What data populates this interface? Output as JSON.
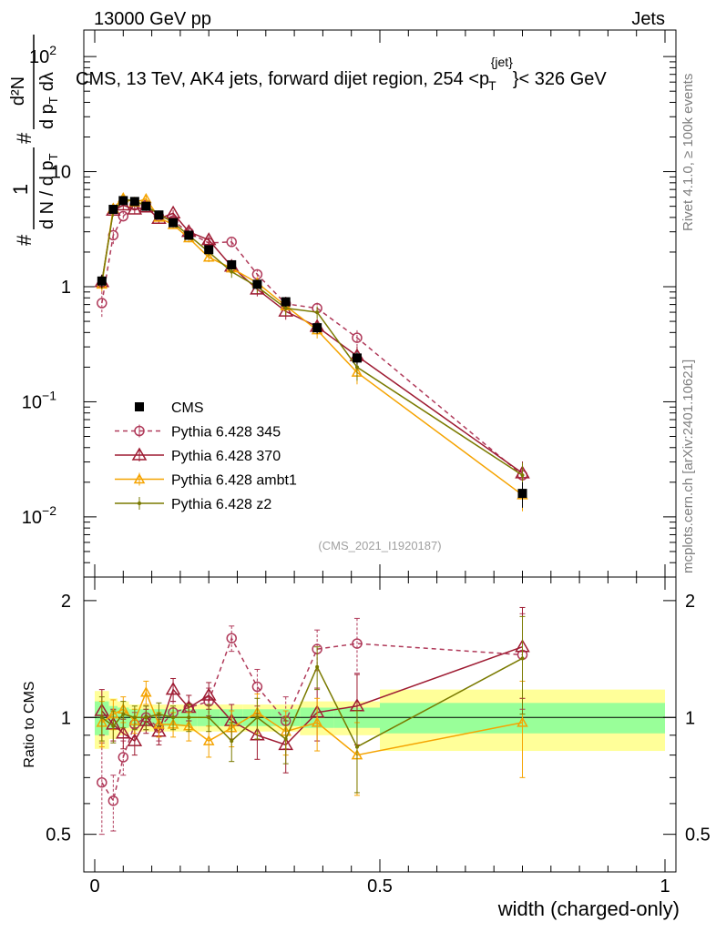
{
  "header": {
    "left": "13000 GeV pp",
    "right": "Jets"
  },
  "side_labels": {
    "rivet": "Rivet 4.1.0, ≥ 100k events",
    "mcplots": "mcplots.cern.ch [arXiv:2401.10621]"
  },
  "ylabel_main": {
    "frac1": "1",
    "frac1_den": "d N / d p",
    "frac2_num": "d²N",
    "frac2_den": "d p",
    "frac2_den2": "dλ",
    "sub_T": "T",
    "hash": "#"
  },
  "plot_title": {
    "prefix": "CMS, 13 TeV, AK4 jets, forward dijet region, 254 <p",
    "sub": "T",
    "sup": "{jet}",
    "suffix": "}< 326 GeV"
  },
  "analysis_id": "(CMS_2021_I1920187)",
  "legend": [
    {
      "label": "CMS"
    },
    {
      "label": "Pythia 6.428 345"
    },
    {
      "label": "Pythia 6.428 370"
    },
    {
      "label": "Pythia 6.428 ambt1"
    },
    {
      "label": "Pythia 6.428 z2"
    }
  ],
  "chart_data": {
    "type": "line",
    "xlabel": "width (charged-only)",
    "xlim": [
      0,
      1
    ],
    "x_ticks": [
      "0",
      "0.5",
      "1"
    ],
    "main": {
      "yscale": "log",
      "ylim": [
        0.003,
        170
      ],
      "y_ticks": [
        {
          "value": 0.01,
          "base": "10",
          "exp": "−2"
        },
        {
          "value": 0.1,
          "base": "10",
          "exp": "−1"
        },
        {
          "value": 1,
          "base": "1",
          "exp": ""
        },
        {
          "value": 10,
          "base": "10",
          "exp": ""
        },
        {
          "value": 100,
          "base": "10",
          "exp": "2"
        }
      ]
    },
    "ratio": {
      "ylabel": "Ratio to CMS",
      "yscale": "log",
      "ylim": [
        0.4,
        2.3
      ],
      "y_ticks": [
        {
          "value": 0.5,
          "label": "0.5"
        },
        {
          "value": 1,
          "label": "1"
        },
        {
          "value": 2,
          "label": "2"
        }
      ]
    },
    "bins": [
      [
        0.0,
        0.025
      ],
      [
        0.025,
        0.04
      ],
      [
        0.04,
        0.06
      ],
      [
        0.06,
        0.08
      ],
      [
        0.08,
        0.1
      ],
      [
        0.1,
        0.125
      ],
      [
        0.125,
        0.15
      ],
      [
        0.15,
        0.18
      ],
      [
        0.18,
        0.22
      ],
      [
        0.22,
        0.26
      ],
      [
        0.26,
        0.31
      ],
      [
        0.31,
        0.36
      ],
      [
        0.36,
        0.42
      ],
      [
        0.42,
        0.5
      ],
      [
        0.5,
        1.0
      ]
    ],
    "x": [
      0.0125,
      0.0325,
      0.05,
      0.07,
      0.09,
      0.1125,
      0.1375,
      0.165,
      0.2,
      0.24,
      0.285,
      0.335,
      0.39,
      0.46,
      0.75
    ],
    "data": {
      "name": "CMS",
      "values": [
        1.12,
        4.7,
        5.6,
        5.5,
        5.0,
        4.2,
        3.6,
        2.8,
        2.1,
        1.55,
        1.05,
        0.74,
        0.44,
        0.24,
        0.016
      ],
      "errors": [
        0.15,
        0.4,
        0.4,
        0.4,
        0.35,
        0.3,
        0.28,
        0.22,
        0.16,
        0.12,
        0.09,
        0.07,
        0.05,
        0.03,
        0.004
      ],
      "band_inner": [
        0.1,
        0.07,
        0.06,
        0.05,
        0.05,
        0.05,
        0.05,
        0.05,
        0.05,
        0.05,
        0.05,
        0.05,
        0.06,
        0.06,
        0.09
      ],
      "band_outer": [
        0.17,
        0.12,
        0.1,
        0.08,
        0.08,
        0.08,
        0.08,
        0.08,
        0.08,
        0.08,
        0.08,
        0.08,
        0.1,
        0.1,
        0.18
      ]
    },
    "series": [
      {
        "name": "Pythia 6.428 345",
        "color": "#b03a5a",
        "style": "dashed",
        "marker": "circle",
        "values": [
          0.72,
          2.8,
          4.1,
          5.1,
          5.1,
          4.1,
          3.75,
          2.95,
          2.4,
          2.45,
          1.28,
          0.71,
          0.65,
          0.36,
          0.023
        ],
        "ratio": [
          0.68,
          0.61,
          0.79,
          0.96,
          1.0,
          0.94,
          1.03,
          1.06,
          1.1,
          1.6,
          1.2,
          0.98,
          1.5,
          1.55,
          1.45
        ],
        "ratio_err": [
          0.18,
          0.1,
          0.08,
          0.07,
          0.07,
          0.07,
          0.07,
          0.08,
          0.09,
          0.12,
          0.13,
          0.15,
          0.18,
          0.25,
          0.4
        ]
      },
      {
        "name": "Pythia 6.428 370",
        "color": "#9e1b32",
        "style": "solid",
        "marker": "triangle",
        "values": [
          1.1,
          4.6,
          5.1,
          4.7,
          4.9,
          3.9,
          4.35,
          3.0,
          2.55,
          1.5,
          0.95,
          0.61,
          0.45,
          0.25,
          0.024
        ],
        "ratio": [
          1.04,
          0.96,
          0.91,
          0.87,
          0.98,
          0.92,
          1.18,
          1.06,
          1.14,
          0.98,
          0.9,
          0.85,
          1.03,
          1.07,
          1.52
        ],
        "ratio_err": [
          0.14,
          0.09,
          0.08,
          0.07,
          0.07,
          0.07,
          0.08,
          0.08,
          0.09,
          0.1,
          0.12,
          0.13,
          0.16,
          0.22,
          0.4
        ]
      },
      {
        "name": "Pythia 6.428 ambt1",
        "color": "#f5a300",
        "style": "solid",
        "marker": "triangle-small",
        "values": [
          1.05,
          4.8,
          5.9,
          5.4,
          5.8,
          4.0,
          3.45,
          2.65,
          1.8,
          1.45,
          1.08,
          0.68,
          0.42,
          0.18,
          0.0155
        ],
        "ratio": [
          0.97,
          1.02,
          1.05,
          0.98,
          1.16,
          0.96,
          0.96,
          0.95,
          0.87,
          0.94,
          1.03,
          0.92,
          0.97,
          0.8,
          0.97
        ],
        "ratio_err": [
          0.13,
          0.09,
          0.08,
          0.07,
          0.08,
          0.07,
          0.07,
          0.08,
          0.08,
          0.1,
          0.12,
          0.12,
          0.15,
          0.17,
          0.27
        ]
      },
      {
        "name": "Pythia 6.428 z2",
        "color": "#7a7a00",
        "style": "solid",
        "marker": "dot",
        "values": [
          1.1,
          4.5,
          5.7,
          5.6,
          5.0,
          4.3,
          3.6,
          2.8,
          2.0,
          1.35,
          1.0,
          0.65,
          0.6,
          0.2,
          0.023
        ],
        "ratio": [
          1.0,
          0.95,
          1.02,
          1.0,
          1.0,
          1.02,
          1.0,
          1.0,
          1.0,
          0.87,
          1.0,
          0.88,
          1.35,
          0.84,
          1.42
        ],
        "ratio_err": [
          0.13,
          0.09,
          0.08,
          0.07,
          0.07,
          0.07,
          0.07,
          0.08,
          0.08,
          0.1,
          0.12,
          0.12,
          0.17,
          0.2,
          0.4
        ]
      }
    ]
  }
}
